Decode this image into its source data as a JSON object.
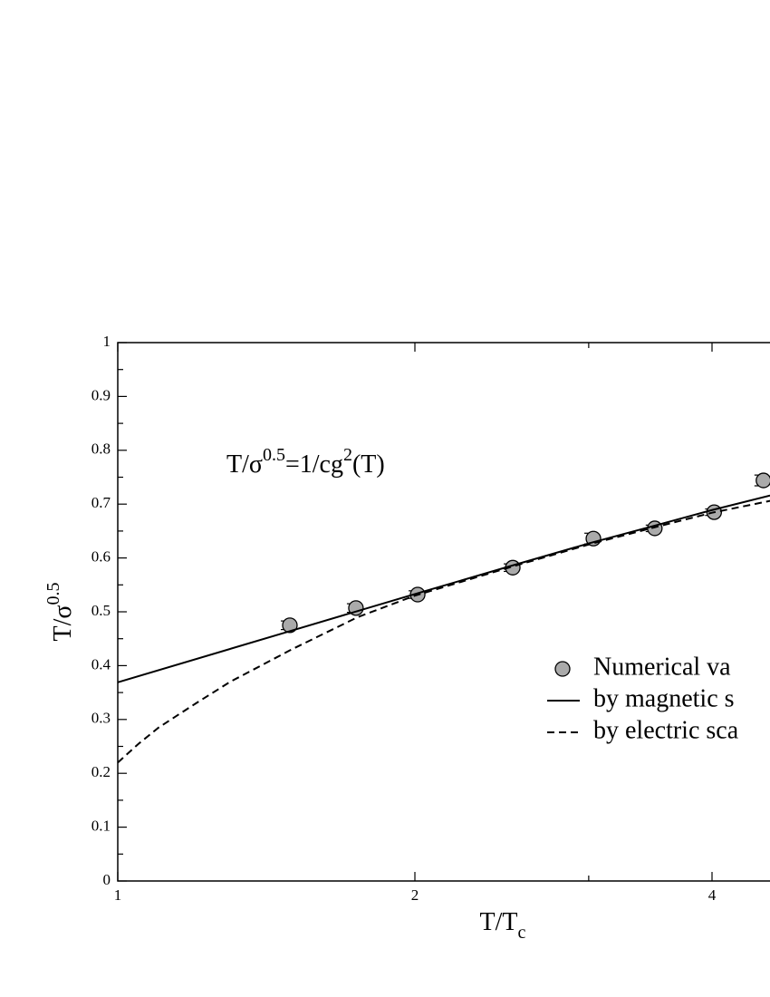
{
  "chart_data": {
    "type": "line",
    "annotation": {
      "parts": [
        "T/σ",
        "0.5",
        "=1/cg",
        "2",
        "(T)"
      ]
    },
    "xlabel": {
      "base": "T/T",
      "sub": "c"
    },
    "ylabel": {
      "base": "T/σ",
      "sup": "0.5"
    },
    "xscale": "log",
    "xlim": [
      1,
      8
    ],
    "ylim": [
      0,
      1
    ],
    "xticks": [
      1,
      2,
      4
    ],
    "xminorticks": [
      3
    ],
    "yticks": [
      0,
      0.1,
      0.2,
      0.3,
      0.4,
      0.5,
      0.6,
      0.7,
      0.8,
      0.9,
      1
    ],
    "yminorticks": [
      0.05,
      0.15,
      0.25,
      0.35,
      0.45,
      0.55,
      0.65,
      0.75,
      0.85,
      0.95
    ],
    "series": [
      {
        "name": "Numerical va",
        "style": "markers",
        "color": "#aaaaaa",
        "x": [
          1.494,
          1.743,
          2.013,
          2.513,
          3.033,
          3.5,
          4.02,
          4.51
        ],
        "values": [
          0.475,
          0.507,
          0.532,
          0.582,
          0.636,
          0.655,
          0.685,
          0.744
        ],
        "errors": [
          0.008,
          0.008,
          0.007,
          0.007,
          0.01,
          0.006,
          0.006,
          0.01
        ]
      },
      {
        "name": "by magnetic s",
        "style": "solid",
        "color": "#000000",
        "x": [
          1,
          1.5,
          2,
          2.5,
          3,
          3.5,
          4,
          4.58
        ],
        "values": [
          0.369,
          0.465,
          0.533,
          0.585,
          0.627,
          0.66,
          0.689,
          0.716
        ]
      },
      {
        "name": "by electric sca",
        "style": "dashed",
        "color": "#000000",
        "x": [
          1,
          1.05,
          1.1,
          1.2,
          1.3,
          1.5,
          1.75,
          2,
          2.5,
          3,
          3.5,
          4,
          4.58
        ],
        "values": [
          0.22,
          0.255,
          0.285,
          0.33,
          0.37,
          0.43,
          0.49,
          0.53,
          0.583,
          0.625,
          0.657,
          0.684,
          0.706
        ]
      }
    ]
  }
}
